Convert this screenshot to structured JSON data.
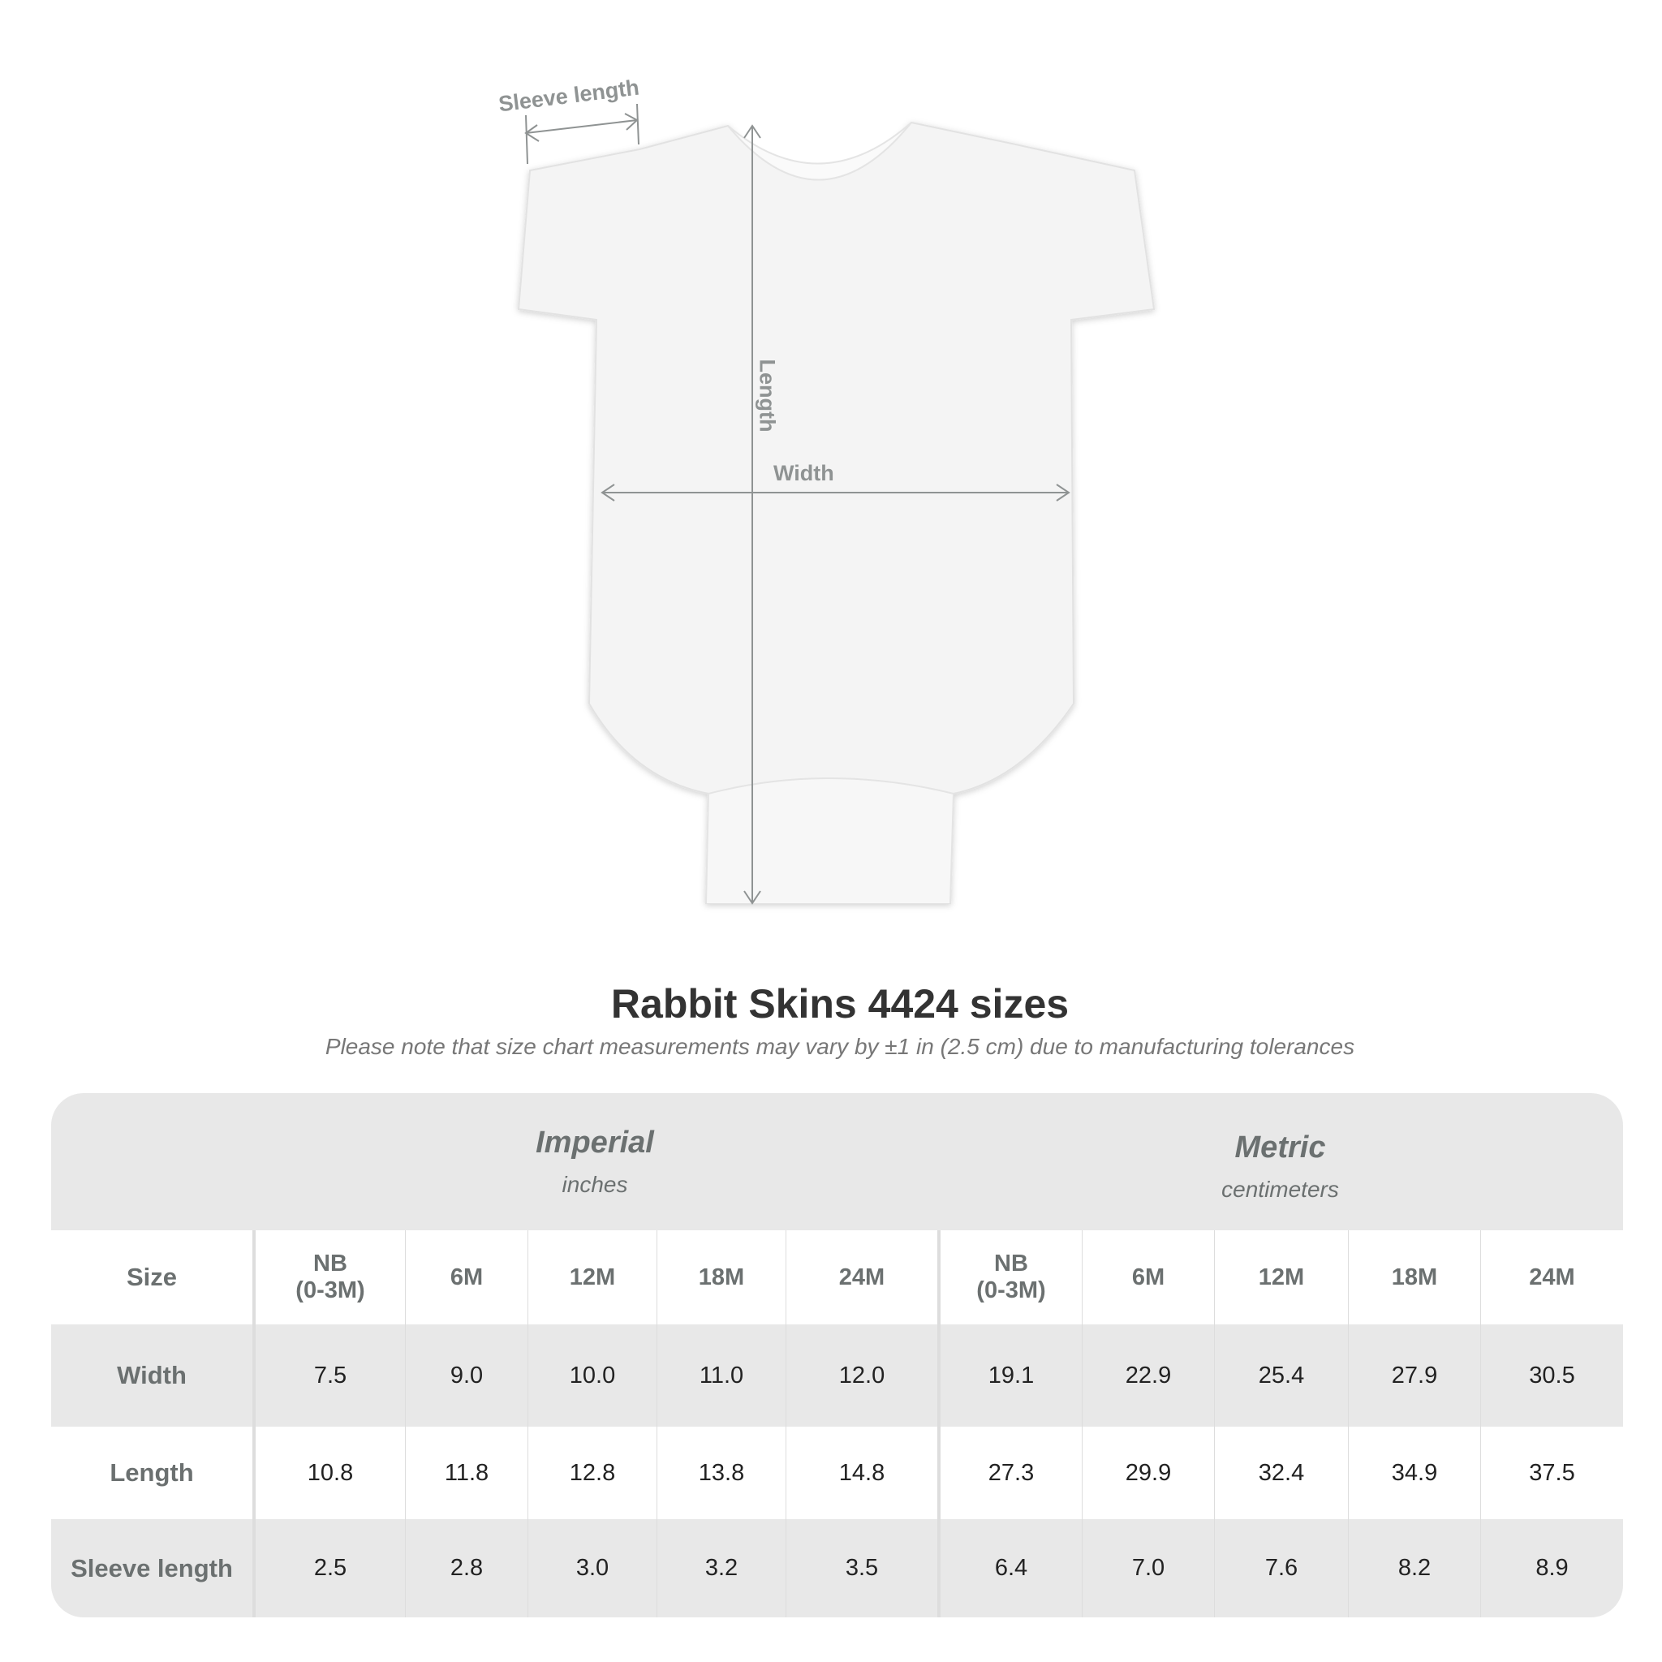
{
  "diagram": {
    "sleeve_label": "Sleeve length",
    "length_label": "Length",
    "width_label": "Width"
  },
  "title": "Rabbit Skins 4424 sizes",
  "note": "Please note that size chart measurements may vary by ±1 in (2.5 cm) due to manufacturing tolerances",
  "imperial": {
    "name": "Imperial",
    "unit": "inches"
  },
  "metric": {
    "name": "Metric",
    "unit": "centimeters"
  },
  "header": [
    "Size",
    "NB\n(0-3M)",
    "6M",
    "12M",
    "18M",
    "24M",
    "NB\n(0-3M)",
    "6M",
    "12M",
    "18M",
    "24M"
  ],
  "rows": [
    [
      "Width",
      "7.5",
      "9.0",
      "10.0",
      "11.0",
      "12.0",
      "19.1",
      "22.9",
      "25.4",
      "27.9",
      "30.5"
    ],
    [
      "Length",
      "10.8",
      "11.8",
      "12.8",
      "13.8",
      "14.8",
      "27.3",
      "29.9",
      "32.4",
      "34.9",
      "37.5"
    ],
    [
      "Sleeve length",
      "2.5",
      "2.8",
      "3.0",
      "3.2",
      "3.5",
      "6.4",
      "7.0",
      "7.6",
      "8.2",
      "8.9"
    ]
  ]
}
